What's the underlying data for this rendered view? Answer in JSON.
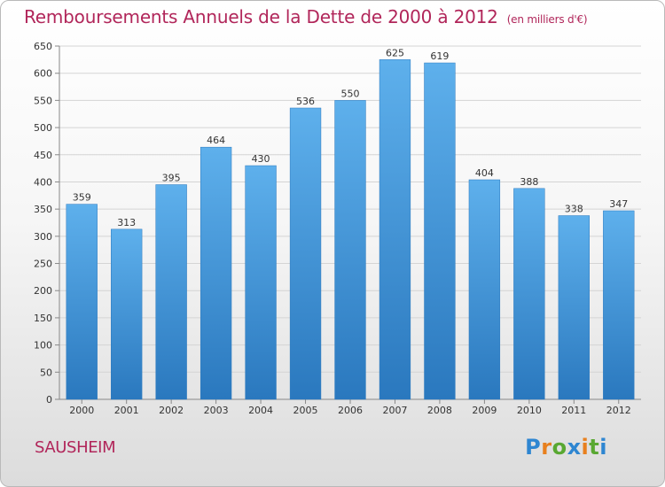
{
  "chart_data": {
    "type": "bar",
    "title": "Remboursements Annuels de la Dette de 2000 à 2012",
    "subtitle": "(en milliers d'€)",
    "xlabel": "",
    "ylabel": "",
    "categories": [
      "2000",
      "2001",
      "2002",
      "2003",
      "2004",
      "2005",
      "2006",
      "2007",
      "2008",
      "2009",
      "2010",
      "2011",
      "2012"
    ],
    "values": [
      359,
      313,
      395,
      464,
      430,
      536,
      550,
      625,
      619,
      404,
      388,
      338,
      347
    ],
    "ylim": [
      0,
      650
    ],
    "yticks": [
      0,
      50,
      100,
      150,
      200,
      250,
      300,
      350,
      400,
      450,
      500,
      550,
      600,
      650
    ],
    "grid": true,
    "bar_color": "#3f95d8"
  },
  "footer": {
    "commune": "SAUSHEIM",
    "brand": "Proxiti"
  }
}
